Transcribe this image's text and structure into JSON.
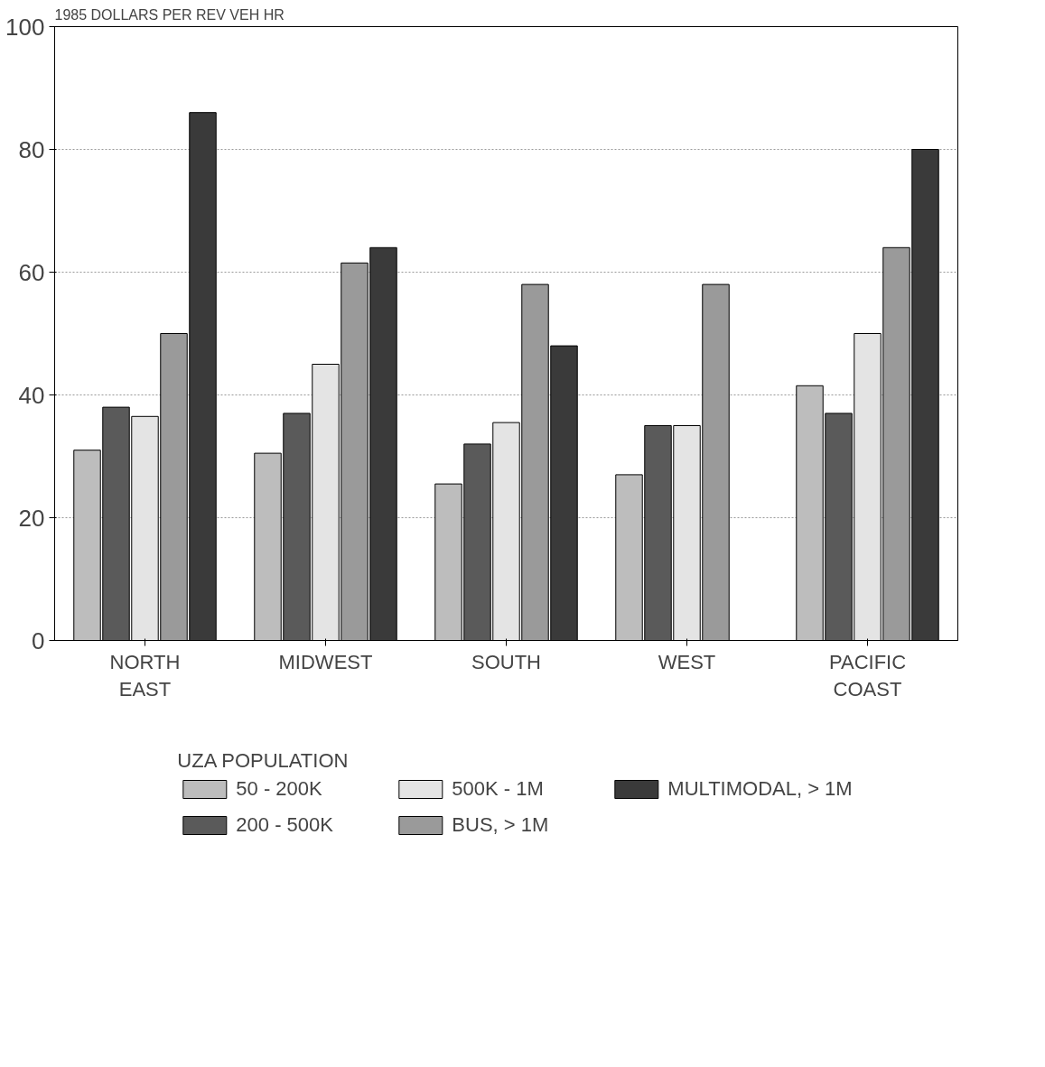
{
  "chart_data": {
    "type": "bar",
    "title": "1985 DOLLARS PER REV VEH HR",
    "categories": [
      "NORTH\nEAST",
      "MIDWEST",
      "SOUTH",
      "WEST",
      "PACIFIC\nCOAST"
    ],
    "series": [
      {
        "name": "50 - 200K",
        "color": "#bdbdbd",
        "values": [
          31,
          30.5,
          25.5,
          27,
          41.5
        ]
      },
      {
        "name": "200 - 500K",
        "color": "#5a5a5a",
        "values": [
          38,
          37,
          32,
          35,
          37
        ]
      },
      {
        "name": "500K - 1M",
        "color": "#e4e4e4",
        "values": [
          36.5,
          45,
          35.5,
          35,
          50
        ]
      },
      {
        "name": "BUS, > 1M",
        "color": "#9a9a9a",
        "values": [
          50,
          61.5,
          58,
          58,
          64
        ]
      },
      {
        "name": "MULTIMODAL, > 1M",
        "color": "#3a3a3a",
        "values": [
          86,
          64,
          48,
          null,
          80
        ]
      }
    ],
    "ylim": [
      0,
      100
    ],
    "yticks": [
      0,
      20,
      40,
      60,
      80,
      100
    ],
    "grid": "y",
    "legend": "bottom",
    "legend_title": "UZA POPULATION"
  }
}
